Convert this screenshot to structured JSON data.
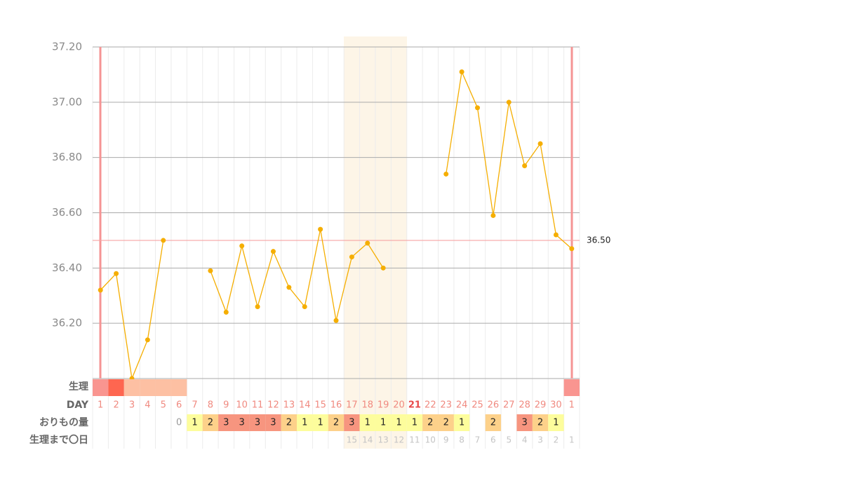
{
  "chart_data": {
    "type": "line",
    "categories": [
      "1",
      "2",
      "3",
      "4",
      "5",
      "6",
      "7",
      "8",
      "9",
      "10",
      "11",
      "12",
      "13",
      "14",
      "15",
      "16",
      "17",
      "18",
      "19",
      "20",
      "21",
      "22",
      "23",
      "24",
      "25",
      "26",
      "27",
      "28",
      "29",
      "30",
      "1"
    ],
    "values": [
      36.32,
      36.38,
      36.0,
      36.14,
      36.5,
      null,
      null,
      36.39,
      36.24,
      36.48,
      36.26,
      36.46,
      36.33,
      36.26,
      36.54,
      36.21,
      36.44,
      36.49,
      36.4,
      null,
      null,
      null,
      36.74,
      37.11,
      36.98,
      36.59,
      37.0,
      36.77,
      36.85,
      36.52,
      36.47
    ],
    "color": "#f5ae00",
    "ylim": [
      36.0,
      37.2
    ],
    "yticks": [
      {
        "value": 36.2,
        "label": "36.20"
      },
      {
        "value": 36.4,
        "label": "36.40"
      },
      {
        "value": 36.6,
        "label": "36.60"
      },
      {
        "value": 36.8,
        "label": "36.80"
      },
      {
        "value": 37.0,
        "label": "37.00"
      },
      {
        "value": 37.2,
        "label": "37.20"
      }
    ],
    "grid": true,
    "reference_line": {
      "value": 36.5,
      "label": "36.50",
      "color": "#f7a3a3"
    },
    "row_labels": {
      "period": "生理",
      "day": "DAY",
      "discharge": "おりもの量",
      "countdown": "生理まで〇日"
    },
    "period_colors": [
      "#f99590",
      "#fe6650",
      "#fdc0a3",
      "#fdc0a3",
      "#fdc0a3",
      "#fdc0a3",
      null,
      null,
      null,
      null,
      null,
      null,
      null,
      null,
      null,
      null,
      null,
      null,
      null,
      null,
      null,
      null,
      null,
      null,
      null,
      null,
      null,
      null,
      null,
      null,
      "#f99590"
    ],
    "discharge": [
      null,
      null,
      null,
      null,
      null,
      0,
      1,
      2,
      3,
      3,
      3,
      3,
      2,
      1,
      1,
      2,
      3,
      1,
      1,
      1,
      1,
      2,
      2,
      1,
      null,
      2,
      null,
      3,
      2,
      1,
      null
    ],
    "discharge_colors": {
      "1": "#fdfd9c",
      "2": "#fdd18a",
      "3": "#f7957f"
    },
    "countdown": [
      null,
      null,
      null,
      null,
      null,
      null,
      null,
      null,
      null,
      null,
      null,
      null,
      null,
      null,
      null,
      null,
      15,
      14,
      13,
      12,
      11,
      10,
      9,
      8,
      7,
      6,
      5,
      4,
      3,
      2,
      1
    ]
  }
}
